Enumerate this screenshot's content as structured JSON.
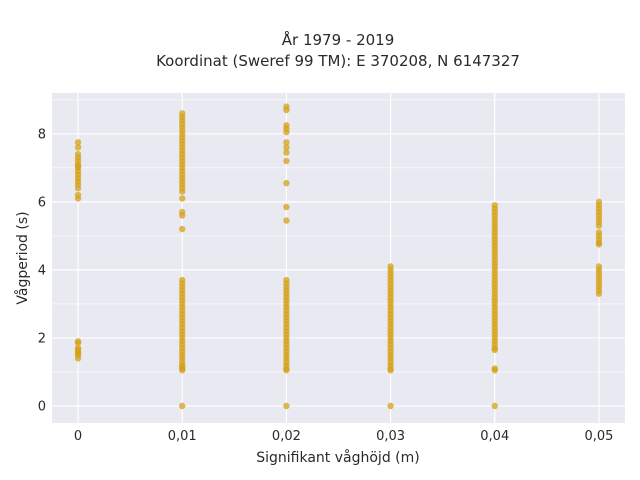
{
  "chart_data": {
    "type": "scatter",
    "title_line1": "År 1979 - 2019",
    "title_line2": "Koordinat (Sweref 99 TM): E 370208, N 6147327",
    "xlabel": "Signifikant våghöjd (m)",
    "ylabel": "Vågperiod (s)",
    "xlim": [
      -0.0025,
      0.0525
    ],
    "ylim": [
      -0.5,
      9.2
    ],
    "x_ticks": [
      {
        "value": 0.0,
        "label": "0"
      },
      {
        "value": 0.01,
        "label": "0,01"
      },
      {
        "value": 0.02,
        "label": "0,02"
      },
      {
        "value": 0.03,
        "label": "0,03"
      },
      {
        "value": 0.04,
        "label": "0,04"
      },
      {
        "value": 0.05,
        "label": "0,05"
      }
    ],
    "y_ticks": [
      {
        "value": 0,
        "label": "0"
      },
      {
        "value": 2,
        "label": "2"
      },
      {
        "value": 4,
        "label": "4"
      },
      {
        "value": 6,
        "label": "6"
      },
      {
        "value": 8,
        "label": "8"
      }
    ],
    "grid": true,
    "marker_color": "#d4a017",
    "plot_bg": "#e9e9f1",
    "series": [
      {
        "x": 0.0,
        "y": [
          1.4,
          1.5,
          1.55,
          1.6,
          1.65,
          1.7,
          1.85,
          1.9,
          6.1,
          6.2,
          6.4,
          6.5,
          6.6,
          6.7,
          6.8,
          6.9,
          7.0,
          7.05,
          7.1,
          7.2,
          7.3,
          7.4,
          7.6,
          7.75
        ]
      },
      {
        "x": 0.01,
        "y": [
          0.0,
          1.05,
          1.1,
          1.15,
          1.2,
          1.3,
          1.4,
          1.5,
          1.6,
          1.7,
          1.8,
          1.9,
          2.0,
          2.1,
          2.2,
          2.3,
          2.4,
          2.5,
          2.6,
          2.7,
          2.8,
          2.9,
          3.0,
          3.1,
          3.2,
          3.3,
          3.4,
          3.5,
          3.6,
          3.7,
          5.2,
          5.6,
          5.7,
          6.1,
          6.3,
          6.4,
          6.5,
          6.6,
          6.7,
          6.8,
          6.9,
          7.0,
          7.1,
          7.2,
          7.3,
          7.4,
          7.5,
          7.6,
          7.7,
          7.8,
          7.9,
          8.0,
          8.1,
          8.2,
          8.3,
          8.4,
          8.5,
          8.6
        ]
      },
      {
        "x": 0.02,
        "y": [
          0.0,
          1.05,
          1.1,
          1.2,
          1.3,
          1.4,
          1.5,
          1.6,
          1.7,
          1.8,
          1.9,
          2.0,
          2.1,
          2.2,
          2.3,
          2.4,
          2.5,
          2.6,
          2.7,
          2.8,
          2.9,
          3.0,
          3.1,
          3.2,
          3.3,
          3.4,
          3.5,
          3.6,
          3.7,
          5.45,
          5.85,
          6.55,
          7.2,
          7.45,
          7.6,
          7.75,
          8.05,
          8.15,
          8.25,
          8.7,
          8.8
        ]
      },
      {
        "x": 0.03,
        "y": [
          0.0,
          1.05,
          1.1,
          1.2,
          1.3,
          1.4,
          1.5,
          1.6,
          1.7,
          1.8,
          1.9,
          2.0,
          2.1,
          2.2,
          2.3,
          2.4,
          2.5,
          2.6,
          2.7,
          2.8,
          2.9,
          3.0,
          3.1,
          3.2,
          3.3,
          3.4,
          3.5,
          3.6,
          3.7,
          3.8,
          3.9,
          4.0,
          4.1
        ]
      },
      {
        "x": 0.04,
        "y": [
          0.0,
          1.05,
          1.1,
          1.65,
          1.7,
          1.8,
          1.9,
          2.0,
          2.1,
          2.2,
          2.3,
          2.4,
          2.5,
          2.6,
          2.7,
          2.8,
          2.9,
          3.0,
          3.1,
          3.2,
          3.3,
          3.4,
          3.5,
          3.6,
          3.7,
          3.8,
          3.9,
          4.0,
          4.1,
          4.2,
          4.3,
          4.4,
          4.5,
          4.6,
          4.7,
          4.8,
          4.9,
          5.0,
          5.1,
          5.2,
          5.3,
          5.4,
          5.5,
          5.6,
          5.7,
          5.8,
          5.9
        ]
      },
      {
        "x": 0.05,
        "y": [
          3.3,
          3.4,
          3.5,
          3.6,
          3.7,
          3.8,
          3.9,
          4.0,
          4.1,
          4.75,
          4.8,
          4.9,
          5.0,
          5.1,
          5.3,
          5.4,
          5.5,
          5.6,
          5.7,
          5.8,
          5.9,
          6.0
        ]
      }
    ]
  }
}
